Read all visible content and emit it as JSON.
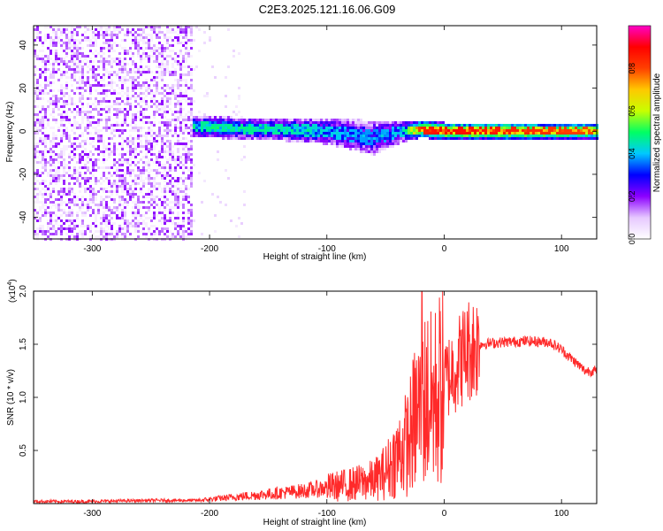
{
  "figure": {
    "title": "C2E3.2025.121.16.06.G09"
  },
  "chart_data": [
    {
      "type": "heatmap",
      "xlabel": "Height of straight line (km)",
      "ylabel": "Frequency (Hz)",
      "xlim": [
        -350,
        130
      ],
      "ylim": [
        -50,
        49
      ],
      "xticks": [
        -300,
        -200,
        -100,
        0,
        100
      ],
      "yticks": [
        -40,
        -20,
        0,
        20,
        40
      ],
      "xtick_labels": [
        "-300",
        "-200",
        "-100",
        "0",
        "100"
      ],
      "ytick_labels": [
        "-40",
        "-20",
        "0",
        "20",
        "40"
      ],
      "colorbar": {
        "label": "Normalized spectral amplitude",
        "range": [
          0,
          1
        ],
        "ticks": [
          0.0,
          0.2,
          0.4,
          0.6,
          0.8
        ],
        "tick_labels": [
          "0.0",
          "0.2",
          "0.4",
          "0.6",
          "0.8"
        ],
        "colors": [
          "#ffffff",
          "#e6c8ff",
          "#8c00ff",
          "#0000ff",
          "#00c8ff",
          "#00ff64",
          "#c8ff00",
          "#ffc800",
          "#ff4000",
          "#ff0000",
          "#ff00c8"
        ]
      },
      "noise_region": {
        "x_range": [
          -350,
          -215
        ],
        "freq_range": [
          -50,
          49
        ],
        "amplitude": 0.15
      },
      "signal_track": [
        {
          "x": -215,
          "center": 2,
          "half_width": 5,
          "amplitude": 0.45
        },
        {
          "x": -150,
          "center": 1,
          "half_width": 5,
          "amplitude": 0.45
        },
        {
          "x": -100,
          "center": 0,
          "half_width": 6,
          "amplitude": 0.4
        },
        {
          "x": -60,
          "center": -3,
          "half_width": 8,
          "amplitude": 0.35
        },
        {
          "x": -35,
          "center": 0,
          "half_width": 5,
          "amplitude": 0.4
        },
        {
          "x": -20,
          "center": 1,
          "half_width": 4,
          "amplitude": 0.8
        },
        {
          "x": 0,
          "center": 0,
          "half_width": 4,
          "amplitude": 0.85
        },
        {
          "x": 130,
          "center": 0,
          "half_width": 4,
          "amplitude": 0.75
        }
      ]
    },
    {
      "type": "line",
      "xlabel": "Height of straight line (km)",
      "ylabel": "SNR (10 * v/v)",
      "y_multiplier": "(x10",
      "y_multiplier_exp": "4",
      "y_multiplier_close": ")",
      "xlim": [
        -350,
        130
      ],
      "ylim": [
        0,
        2.0
      ],
      "xticks": [
        -300,
        -200,
        -100,
        0,
        100
      ],
      "yticks": [
        0.5,
        1.0,
        1.5,
        2.0
      ],
      "xtick_labels": [
        "-300",
        "-200",
        "-100",
        "0",
        "100"
      ],
      "ytick_labels": [
        "0.5",
        "1.0",
        "1.5",
        "2.0"
      ],
      "color": "#ff2a2a",
      "x": [
        -350,
        -300,
        -250,
        -210,
        -180,
        -150,
        -120,
        -100,
        -80,
        -60,
        -50,
        -40,
        -30,
        -25,
        -20,
        -18,
        -15,
        -10,
        -5,
        0,
        10,
        20,
        30,
        50,
        70,
        90,
        100,
        110,
        120,
        130
      ],
      "values": [
        0.02,
        0.02,
        0.03,
        0.03,
        0.06,
        0.09,
        0.12,
        0.15,
        0.18,
        0.22,
        0.3,
        0.45,
        0.6,
        0.8,
        0.9,
        0.95,
        1.0,
        0.95,
        1.05,
        1.15,
        1.3,
        1.45,
        1.5,
        1.52,
        1.53,
        1.52,
        1.45,
        1.35,
        1.25,
        1.25
      ],
      "spike": {
        "x": -19,
        "value": 2.0
      }
    }
  ]
}
